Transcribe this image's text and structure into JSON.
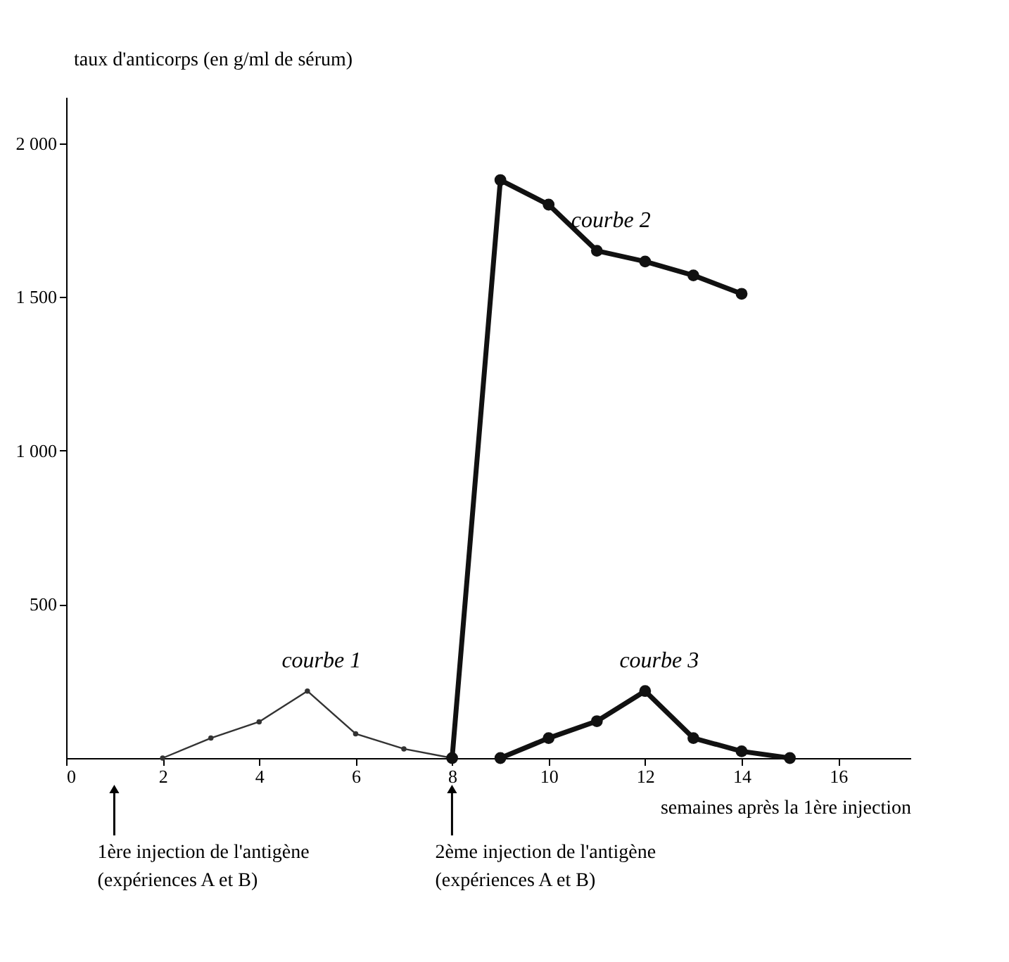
{
  "chart_data": {
    "type": "line",
    "ylabel": "taux d'anticorps (en g/ml de sérum)",
    "xlabel": "semaines après la 1ère injection",
    "series": [
      {
        "name": "courbe 1",
        "color": "#333333",
        "x": [
          2,
          3,
          4,
          5,
          6,
          7,
          8
        ],
        "values": [
          0,
          65,
          118,
          218,
          79,
          30,
          0
        ]
      },
      {
        "name": "courbe 2",
        "color": "#111111",
        "x": [
          8,
          9,
          10,
          11,
          12,
          13,
          14
        ],
        "values": [
          0,
          1880,
          1800,
          1650,
          1615,
          1570,
          1510
        ]
      },
      {
        "name": "courbe 3",
        "color": "#111111",
        "x": [
          9,
          10,
          11,
          12,
          13,
          14,
          15
        ],
        "values": [
          0,
          65,
          120,
          218,
          65,
          22,
          0
        ]
      }
    ],
    "xlim": [
      0,
      17.5
    ],
    "xticks": [
      0,
      2,
      4,
      6,
      8,
      10,
      12,
      14,
      16
    ],
    "ylim": [
      0,
      2150
    ],
    "yticks": [
      {
        "value": 500,
        "label": "500"
      },
      {
        "value": 1000,
        "label": "1 000"
      },
      {
        "value": 1500,
        "label": "1 500"
      },
      {
        "value": 2000,
        "label": "2 000"
      }
    ],
    "annotations": [
      "1ère injection de l'antigène\n(expériences A et B)",
      "2ème injection de l'antigène\n(expériences A et B)"
    ],
    "marker": "circle",
    "grid": false,
    "legend": false
  }
}
